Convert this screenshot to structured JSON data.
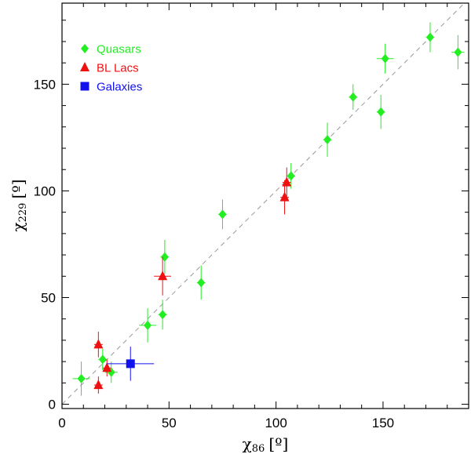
{
  "chart_data": {
    "type": "scatter",
    "xlabel": {
      "symbol": "χ",
      "sub": "86",
      "unit": "[º]"
    },
    "ylabel": {
      "symbol": "χ",
      "sub": "229",
      "unit": "[º]"
    },
    "xlim": [
      0,
      190
    ],
    "ylim": [
      -2,
      188
    ],
    "xticks": [
      0,
      50,
      100,
      150
    ],
    "yticks": [
      0,
      50,
      100,
      150
    ],
    "grid": false,
    "reference_line": {
      "style": "dashed",
      "slope": 1,
      "intercept": 0,
      "color": "#999999"
    },
    "legend_position": "top-left",
    "series": [
      {
        "name": "Quasars",
        "marker": "diamond",
        "color": "#22ee22",
        "points": [
          {
            "x": 9,
            "y": 12,
            "xerr": 4,
            "yerr": 8
          },
          {
            "x": 19,
            "y": 21,
            "xerr": 2,
            "yerr": 5
          },
          {
            "x": 23,
            "y": 15,
            "xerr": 3,
            "yerr": 5
          },
          {
            "x": 40,
            "y": 37,
            "xerr": 4,
            "yerr": 8
          },
          {
            "x": 47,
            "y": 42,
            "xerr": 2,
            "yerr": 7
          },
          {
            "x": 48,
            "y": 69,
            "xerr": 2,
            "yerr": 8
          },
          {
            "x": 65,
            "y": 57,
            "xerr": 2,
            "yerr": 8
          },
          {
            "x": 75,
            "y": 89,
            "xerr": 2,
            "yerr": 7
          },
          {
            "x": 107,
            "y": 107,
            "xerr": 2,
            "yerr": 6
          },
          {
            "x": 124,
            "y": 124,
            "xerr": 2,
            "yerr": 8
          },
          {
            "x": 136,
            "y": 144,
            "xerr": 2,
            "yerr": 6
          },
          {
            "x": 149,
            "y": 137,
            "xerr": 2,
            "yerr": 8
          },
          {
            "x": 151,
            "y": 162,
            "xerr": 4,
            "yerr": 7
          },
          {
            "x": 172,
            "y": 172,
            "xerr": 2,
            "yerr": 7
          },
          {
            "x": 185,
            "y": 165,
            "xerr": 3,
            "yerr": 8
          }
        ]
      },
      {
        "name": "BL Lacs",
        "marker": "triangle",
        "color": "#ee1111",
        "points": [
          {
            "x": 17,
            "y": 28,
            "xerr": 2,
            "yerr": 6
          },
          {
            "x": 17,
            "y": 9,
            "xerr": 2,
            "yerr": 4
          },
          {
            "x": 21,
            "y": 17,
            "xerr": 2,
            "yerr": 4
          },
          {
            "x": 47,
            "y": 60,
            "xerr": 4,
            "yerr": 9
          },
          {
            "x": 104,
            "y": 97,
            "xerr": 2,
            "yerr": 8
          },
          {
            "x": 105,
            "y": 104,
            "xerr": 2,
            "yerr": 7
          }
        ]
      },
      {
        "name": "Galaxies",
        "marker": "square",
        "color": "#1111ee",
        "points": [
          {
            "x": 32,
            "y": 19,
            "xerr": 11,
            "yerr": 8
          }
        ]
      }
    ]
  }
}
